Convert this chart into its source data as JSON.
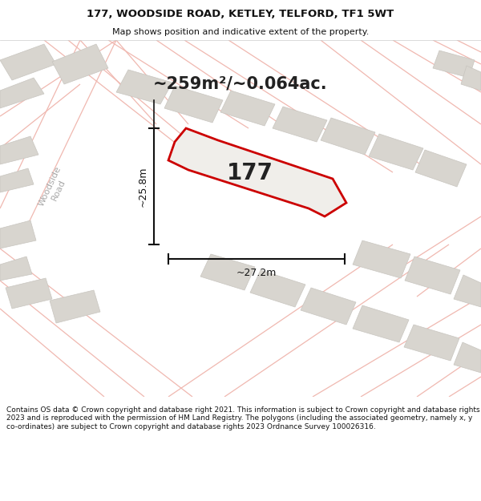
{
  "title_line1": "177, WOODSIDE ROAD, KETLEY, TELFORD, TF1 5WT",
  "title_line2": "Map shows position and indicative extent of the property.",
  "area_text": "~259m²/~0.064ac.",
  "label_177": "177",
  "dim_vertical": "~25.8m",
  "dim_horizontal": "~27.2m",
  "road_label": "Woodside\nRoad",
  "footer_text": "Contains OS data © Crown copyright and database right 2021. This information is subject to Crown copyright and database rights 2023 and is reproduced with the permission of HM Land Registry. The polygons (including the associated geometry, namely x, y co-ordinates) are subject to Crown copyright and database rights 2023 Ordnance Survey 100026316.",
  "map_bg": "#f0eeea",
  "plot_fill": "#f0eeea",
  "plot_outline": "#cc0000",
  "road_line_color": "#f0b8b0",
  "road_edge_color": "#e8a098",
  "gray_block_color": "#d8d5cf",
  "gray_block_edge": "#c8c5bf",
  "footer_bg": "#ffffff",
  "title_bg": "#ffffff",
  "dim_color": "#111111",
  "label_color": "#222222",
  "road_text_color": "#aaaaaa"
}
